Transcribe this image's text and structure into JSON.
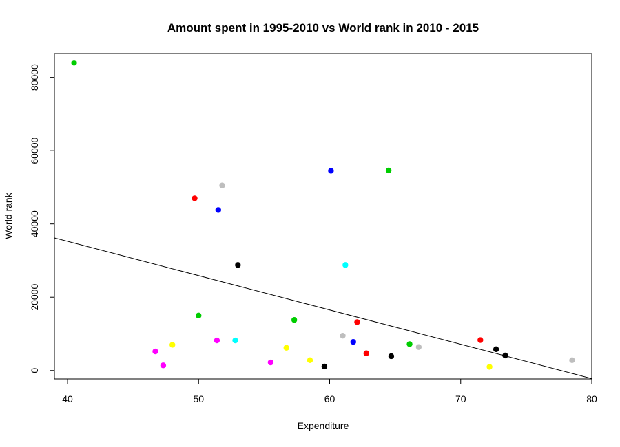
{
  "chart_data": {
    "type": "scatter",
    "title": "Amount spent in 1995-2010 vs World rank in 2010 - 2015",
    "xlabel": "Expenditure",
    "ylabel": "World rank",
    "xlim": [
      39,
      80
    ],
    "ylim": [
      -2300,
      86500
    ],
    "x_ticks": [
      40,
      50,
      60,
      70,
      80
    ],
    "y_ticks": [
      0,
      20000,
      40000,
      60000,
      80000
    ],
    "grid": false,
    "legend": "none",
    "trend_line": {
      "x": [
        39,
        80
      ],
      "y": [
        36200,
        -2200
      ]
    },
    "points": [
      {
        "x": 40.5,
        "y": 84000,
        "color": "#00cd00"
      },
      {
        "x": 49.7,
        "y": 47000,
        "color": "#ff0000"
      },
      {
        "x": 50.0,
        "y": 15000,
        "color": "#00cd00"
      },
      {
        "x": 51.5,
        "y": 43800,
        "color": "#0000ff"
      },
      {
        "x": 51.8,
        "y": 50500,
        "color": "#bebebe"
      },
      {
        "x": 51.4,
        "y": 8200,
        "color": "#ff00ff"
      },
      {
        "x": 52.8,
        "y": 8200,
        "color": "#00ffff"
      },
      {
        "x": 53.0,
        "y": 28800,
        "color": "#000000"
      },
      {
        "x": 46.7,
        "y": 5200,
        "color": "#ff00ff"
      },
      {
        "x": 47.3,
        "y": 1400,
        "color": "#ff00ff"
      },
      {
        "x": 48.0,
        "y": 7000,
        "color": "#ffff00"
      },
      {
        "x": 55.5,
        "y": 2200,
        "color": "#ff00ff"
      },
      {
        "x": 56.7,
        "y": 6200,
        "color": "#ffff00"
      },
      {
        "x": 57.3,
        "y": 13800,
        "color": "#00cd00"
      },
      {
        "x": 58.5,
        "y": 2800,
        "color": "#ffff00"
      },
      {
        "x": 59.6,
        "y": 1100,
        "color": "#000000"
      },
      {
        "x": 60.1,
        "y": 54500,
        "color": "#0000ff"
      },
      {
        "x": 61.0,
        "y": 9500,
        "color": "#bebebe"
      },
      {
        "x": 61.2,
        "y": 28800,
        "color": "#00ffff"
      },
      {
        "x": 61.8,
        "y": 7800,
        "color": "#0000ff"
      },
      {
        "x": 62.1,
        "y": 13200,
        "color": "#ff0000"
      },
      {
        "x": 62.8,
        "y": 4700,
        "color": "#ff0000"
      },
      {
        "x": 64.5,
        "y": 54600,
        "color": "#00cd00"
      },
      {
        "x": 64.7,
        "y": 3900,
        "color": "#000000"
      },
      {
        "x": 66.1,
        "y": 7200,
        "color": "#00cd00"
      },
      {
        "x": 66.8,
        "y": 6400,
        "color": "#bebebe"
      },
      {
        "x": 71.5,
        "y": 8300,
        "color": "#ff0000"
      },
      {
        "x": 72.2,
        "y": 1000,
        "color": "#ffff00"
      },
      {
        "x": 72.7,
        "y": 5800,
        "color": "#000000"
      },
      {
        "x": 73.4,
        "y": 4100,
        "color": "#000000"
      },
      {
        "x": 78.5,
        "y": 2800,
        "color": "#bebebe"
      }
    ]
  }
}
